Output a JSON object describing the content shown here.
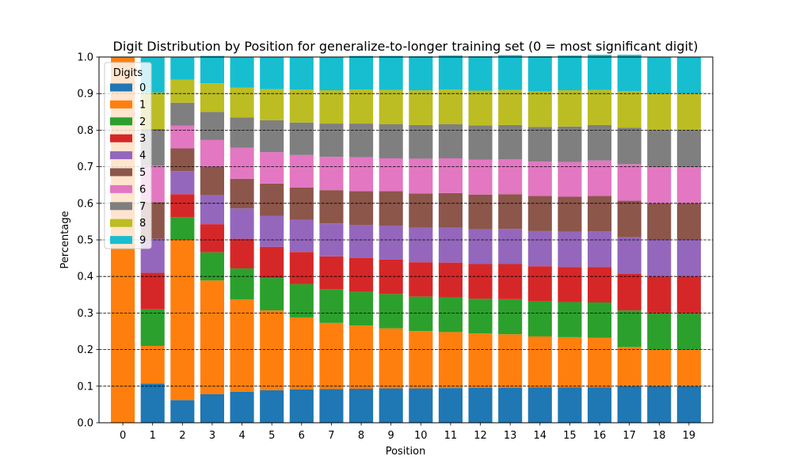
{
  "chart_data": {
    "type": "bar",
    "stacked": true,
    "title": "Digit Distribution by Position for generalize-to-longer training set (0 = most significant digit)",
    "xlabel": "Position",
    "ylabel": "Percentage",
    "ylim": [
      0,
      1.0
    ],
    "yticks": [
      "0.0",
      "0.1",
      "0.2",
      "0.3",
      "0.4",
      "0.5",
      "0.6",
      "0.7",
      "0.8",
      "0.9",
      "1.0"
    ],
    "grid": "horizontal dashed",
    "legend": {
      "title": "Digits",
      "placement": "top-left"
    },
    "categories": [
      "0",
      "1",
      "2",
      "3",
      "4",
      "5",
      "6",
      "7",
      "8",
      "9",
      "10",
      "11",
      "12",
      "13",
      "14",
      "15",
      "16",
      "17",
      "18",
      "19"
    ],
    "series": [
      {
        "name": "0",
        "color": "#1f77b4",
        "values": [
          0.0,
          0.107,
          0.062,
          0.078,
          0.085,
          0.089,
          0.091,
          0.092,
          0.093,
          0.094,
          0.094,
          0.095,
          0.096,
          0.096,
          0.097,
          0.097,
          0.097,
          0.1,
          0.1,
          0.1
        ]
      },
      {
        "name": "1",
        "color": "#ff7f0e",
        "values": [
          1.0,
          0.103,
          0.438,
          0.311,
          0.252,
          0.218,
          0.197,
          0.181,
          0.173,
          0.164,
          0.157,
          0.153,
          0.148,
          0.146,
          0.139,
          0.137,
          0.135,
          0.107,
          0.1,
          0.1
        ]
      },
      {
        "name": "2",
        "color": "#2ca02c",
        "values": [
          0.0,
          0.1,
          0.062,
          0.077,
          0.085,
          0.089,
          0.091,
          0.092,
          0.092,
          0.094,
          0.094,
          0.095,
          0.095,
          0.096,
          0.096,
          0.096,
          0.097,
          0.1,
          0.1,
          0.1
        ]
      },
      {
        "name": "3",
        "color": "#d62728",
        "values": [
          0.0,
          0.1,
          0.063,
          0.077,
          0.081,
          0.085,
          0.088,
          0.09,
          0.093,
          0.094,
          0.094,
          0.095,
          0.095,
          0.096,
          0.096,
          0.096,
          0.097,
          0.1,
          0.1,
          0.1
        ]
      },
      {
        "name": "4",
        "color": "#9467bd",
        "values": [
          0.0,
          0.093,
          0.063,
          0.079,
          0.083,
          0.085,
          0.088,
          0.09,
          0.09,
          0.093,
          0.094,
          0.095,
          0.095,
          0.096,
          0.096,
          0.096,
          0.097,
          0.1,
          0.1,
          0.1
        ]
      },
      {
        "name": "5",
        "color": "#8c564b",
        "values": [
          0.0,
          0.1,
          0.062,
          0.078,
          0.081,
          0.088,
          0.088,
          0.091,
          0.092,
          0.094,
          0.094,
          0.095,
          0.095,
          0.095,
          0.096,
          0.096,
          0.097,
          0.1,
          0.1,
          0.1
        ]
      },
      {
        "name": "6",
        "color": "#e377c2",
        "values": [
          0.0,
          0.1,
          0.062,
          0.073,
          0.085,
          0.086,
          0.089,
          0.091,
          0.093,
          0.09,
          0.095,
          0.095,
          0.095,
          0.095,
          0.094,
          0.095,
          0.097,
          0.1,
          0.1,
          0.1
        ]
      },
      {
        "name": "7",
        "color": "#7f7f7f",
        "values": [
          0.0,
          0.1,
          0.063,
          0.077,
          0.083,
          0.087,
          0.089,
          0.091,
          0.092,
          0.093,
          0.092,
          0.093,
          0.094,
          0.094,
          0.095,
          0.097,
          0.097,
          0.1,
          0.1,
          0.1
        ]
      },
      {
        "name": "8",
        "color": "#bcbd22",
        "values": [
          0.0,
          0.1,
          0.063,
          0.078,
          0.081,
          0.085,
          0.09,
          0.091,
          0.093,
          0.094,
          0.095,
          0.095,
          0.095,
          0.096,
          0.097,
          0.099,
          0.096,
          0.1,
          0.1,
          0.1
        ]
      },
      {
        "name": "9",
        "color": "#17becf",
        "values": [
          0.0,
          0.097,
          0.063,
          0.075,
          0.083,
          0.087,
          0.089,
          0.091,
          0.092,
          0.093,
          0.093,
          0.093,
          0.094,
          0.095,
          0.096,
          0.095,
          0.096,
          0.099,
          0.1,
          0.1
        ]
      }
    ]
  }
}
